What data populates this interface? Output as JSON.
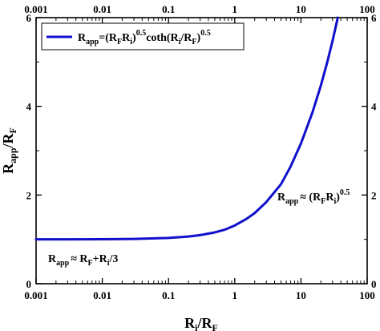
{
  "chart_data": {
    "type": "line",
    "x_scale": "log",
    "y_scale": "linear",
    "xlim": [
      0.001,
      100
    ],
    "ylim": [
      0,
      6
    ],
    "x_ticks": [
      0.001,
      0.01,
      0.1,
      1,
      10,
      100
    ],
    "x_tick_labels": [
      "0.001",
      "0.01",
      "0.1",
      "1",
      "10",
      "100"
    ],
    "y_ticks": [
      0,
      2,
      4,
      6
    ],
    "y_tick_labels": [
      "0",
      "2",
      "4",
      "6"
    ],
    "xlabel": {
      "main": "R",
      "sub1": "i",
      "slash": "/R",
      "sub2": "F"
    },
    "ylabel": {
      "main": "R",
      "sub1": "app",
      "slash": "/R",
      "sub2": "F"
    },
    "grid": false,
    "legend_position": "top-left",
    "series": [
      {
        "name": "R_app=(R_F R_i)^0.5 coth(R_i/R_F)^0.5",
        "color": "#1010cc",
        "x": [
          0.001,
          0.003,
          0.01,
          0.03,
          0.1,
          0.2,
          0.3,
          0.5,
          0.7,
          1,
          1.5,
          2,
          3,
          5,
          7,
          10,
          15,
          20,
          25,
          30,
          36
        ],
        "y": [
          1.0003,
          1.001,
          1.0033,
          1.01,
          1.0328,
          1.0648,
          1.096,
          1.157,
          1.216,
          1.313,
          1.46,
          1.593,
          1.842,
          2.244,
          2.647,
          3.162,
          3.873,
          4.472,
          5.0,
          5.477,
          6.0
        ]
      }
    ],
    "legend": {
      "r": "R",
      "app": "app",
      "eq": "=(R",
      "f1": "F",
      "r2": "R",
      "i1": "i",
      "close1": ")",
      "pow1": "0.5",
      "coth": "coth(R",
      "i2": "i",
      "slash": "/R",
      "f2": "F",
      "close2": ")",
      "pow2": "0.5"
    },
    "annotations": {
      "high": {
        "r": "R",
        "app": "app",
        "approx": "≈ (R",
        "f": "F",
        "r2": "R",
        "i": "i",
        "close": ")",
        "pow": "0.5"
      },
      "low": {
        "r": "R",
        "app": "app",
        "approx": "≈ R",
        "f": "F",
        "plus": "+R",
        "i": "i",
        "rest": "/3"
      }
    }
  }
}
